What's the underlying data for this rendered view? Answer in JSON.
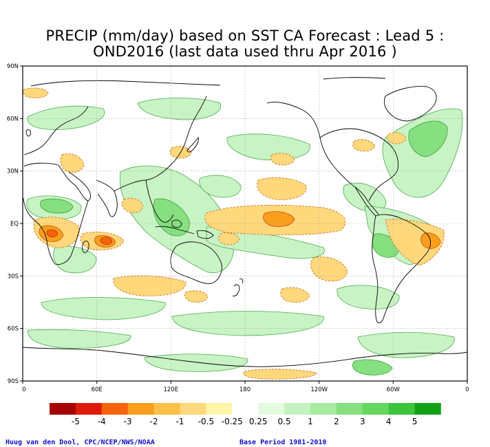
{
  "title": {
    "line1": "PRECIP (mm/day) based on SST CA Forecast : Lead 5 :",
    "line2": "OND2016 (last data used thru Apr 2016 )"
  },
  "map": {
    "lat_labels": [
      "90N",
      "60N",
      "30N",
      "EQ",
      "30S",
      "60S",
      "90S"
    ],
    "lon_labels": [
      "0",
      "60E",
      "120E",
      "180",
      "120W",
      "60W",
      "0"
    ]
  },
  "colorbar": {
    "colors": [
      "#a50000",
      "#e01a0a",
      "#f5640a",
      "#fb9e1c",
      "#fdbf48",
      "#fed87a",
      "#fff4a8",
      "#ffffff",
      "#e4fbe0",
      "#c4f2c0",
      "#a6eba0",
      "#86e080",
      "#64d85e",
      "#3cc43c",
      "#14a014"
    ],
    "labels": [
      "-5",
      "-4",
      "-3",
      "-2",
      "-1",
      "-0.5",
      "-0.25",
      "0.25",
      "0.5",
      "1",
      "2",
      "3",
      "4",
      "5"
    ]
  },
  "footer": {
    "credit": "Huug van den Dool, CPC/NCEP/NWS/NOAA",
    "base_period": "Base Period 1981-2010"
  }
}
